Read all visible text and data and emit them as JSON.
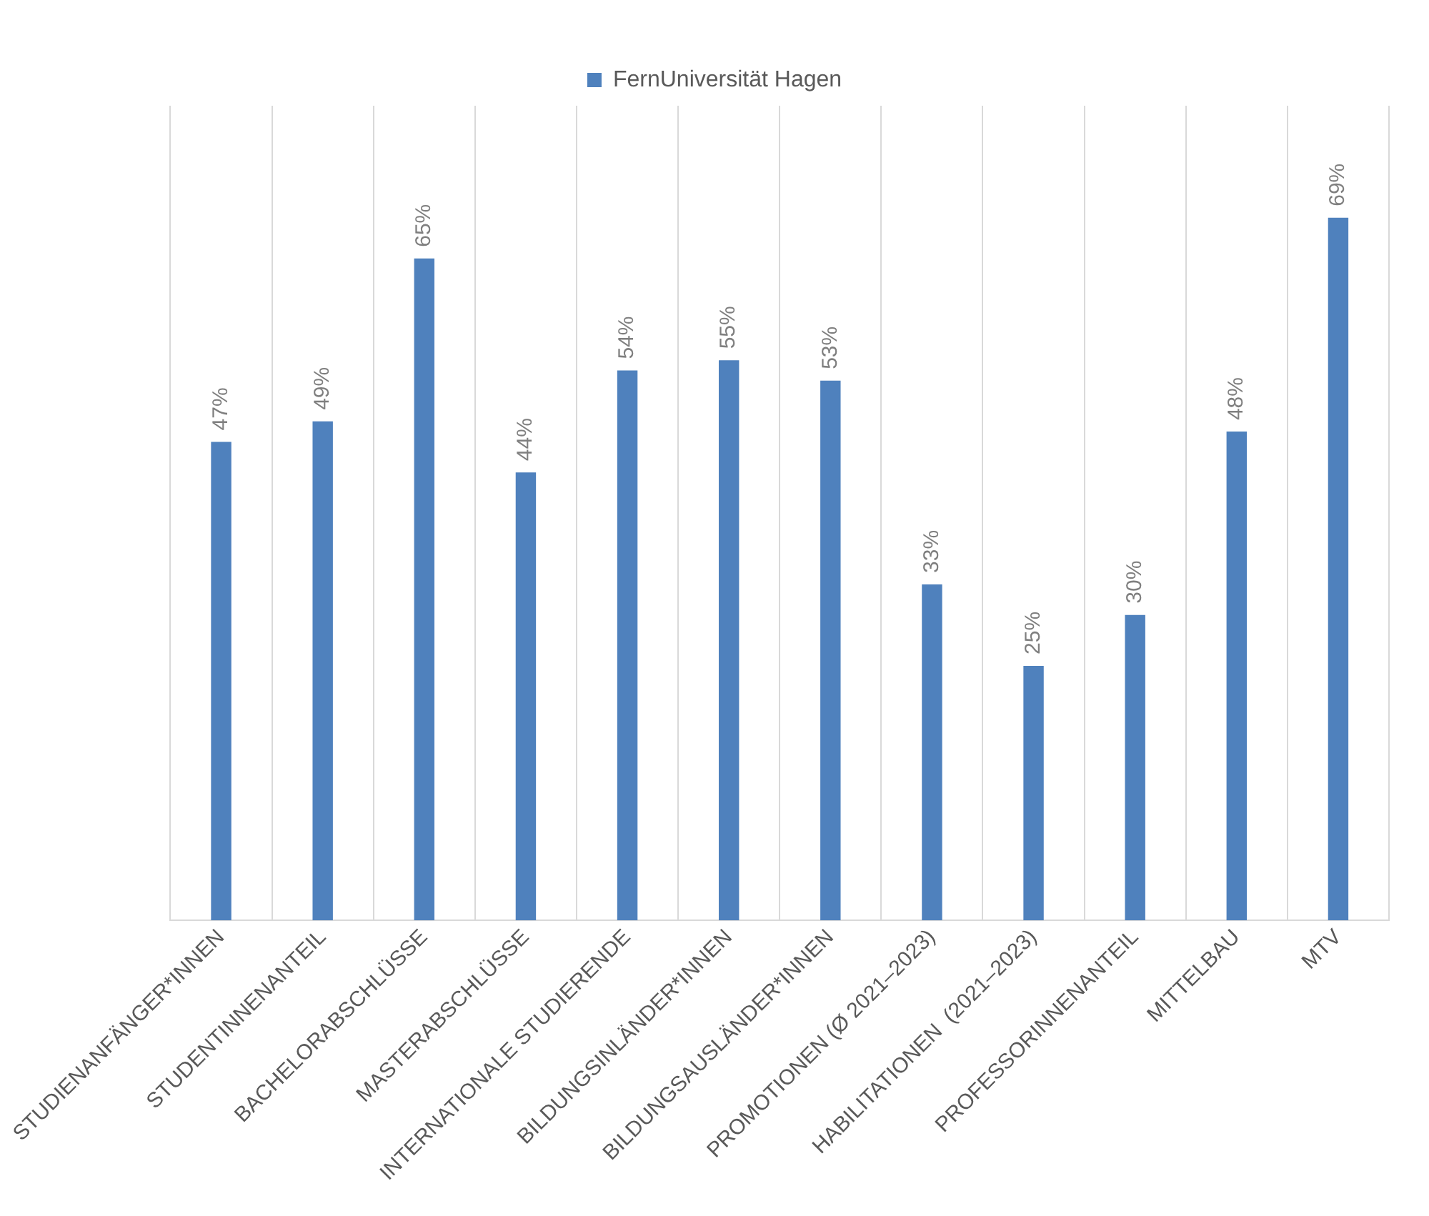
{
  "chart_data": {
    "type": "bar",
    "categories": [
      "STUDIENANFÄNGER*INNEN",
      "STUDENTINNENANTEIL",
      "BACHELORABSCHLÜSSE",
      "MASTERABSCHLÜSSE",
      "INTERNATIONALE STUDIERENDE",
      "BILDUNGSINLÄNDER*INNEN",
      "BILDUNGSAUSLÄNDER*INNEN",
      "PROMOTIONEN (Ø 2021–2023)",
      "HABILITATIONEN  (2021–2023)",
      "PROFESSORINNENANTEIL",
      "MITTELBAU",
      "MTV"
    ],
    "series": [
      {
        "name": "FernUniversität Hagen",
        "color": "#4f81bd",
        "values": [
          47,
          49,
          65,
          44,
          54,
          55,
          53,
          33,
          25,
          30,
          48,
          69
        ],
        "value_labels": [
          "47%",
          "49%",
          "65%",
          "44%",
          "54%",
          "55%",
          "53%",
          "33%",
          "25%",
          "30%",
          "48%",
          "69%"
        ]
      }
    ],
    "ylim": [
      0,
      80
    ],
    "grid": "x",
    "legend": "top",
    "tick_labels": "x"
  }
}
